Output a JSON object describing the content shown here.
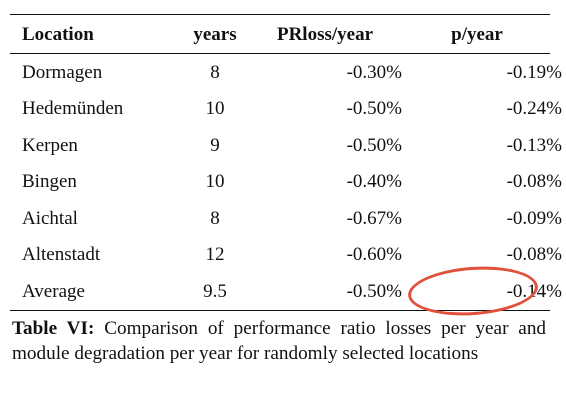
{
  "table": {
    "headers": [
      "Location",
      "years",
      "PRloss/year",
      "p/year"
    ],
    "rows": [
      [
        "Dormagen",
        "8",
        "-0.30%",
        "-0.19%"
      ],
      [
        "Hedemünden",
        "10",
        "-0.50%",
        "-0.24%"
      ],
      [
        "Kerpen",
        "9",
        "-0.50%",
        "-0.13%"
      ],
      [
        "Bingen",
        "10",
        "-0.40%",
        "-0.08%"
      ],
      [
        "Aichtal",
        "8",
        "-0.67%",
        "-0.09%"
      ],
      [
        "Altenstadt",
        "12",
        "-0.60%",
        "-0.08%"
      ],
      [
        "Average",
        "9.5",
        "-0.50%",
        "-0.14%"
      ]
    ]
  },
  "caption": {
    "label": "Table VI:",
    "text": "Comparison of performance ratio losses per year and module degradation per year for randomly selected locations"
  },
  "annotation": {
    "color": "#e0513c"
  }
}
